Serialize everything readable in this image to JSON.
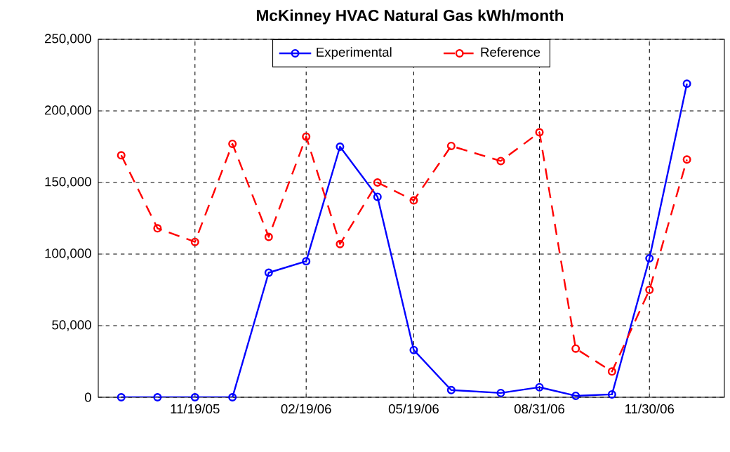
{
  "chart_data": {
    "type": "line",
    "title": "McKinney HVAC Natural Gas kWh/month",
    "x": [
      "2005-09-19",
      "2005-10-19",
      "2005-11-19",
      "2005-12-20",
      "2006-01-19",
      "2006-02-19",
      "2006-03-19",
      "2006-04-19",
      "2006-05-19",
      "2006-06-19",
      "2006-07-30",
      "2006-08-31",
      "2006-09-30",
      "2006-10-30",
      "2006-11-30",
      "2006-12-31"
    ],
    "series": [
      {
        "name": "Experimental",
        "color": "#0000ff",
        "line_style": "solid",
        "values": [
          0,
          0,
          0,
          0,
          87000,
          95000,
          175000,
          140000,
          33000,
          5000,
          3000,
          7000,
          1000,
          2000,
          97000,
          219000
        ]
      },
      {
        "name": "Reference",
        "color": "#ff0000",
        "line_style": "dashed",
        "values": [
          169000,
          118000,
          108500,
          177000,
          112000,
          182000,
          107000,
          150000,
          137500,
          175500,
          165000,
          185000,
          34000,
          18000,
          75000,
          166000
        ]
      }
    ],
    "marker": "circle",
    "xlim": [
      "2005-08-31",
      "2007-01-31"
    ],
    "xticks": [
      {
        "value": "2005-11-19",
        "label": "11/19/05"
      },
      {
        "value": "2006-02-19",
        "label": "02/19/06"
      },
      {
        "value": "2006-05-19",
        "label": "05/19/06"
      },
      {
        "value": "2006-08-31",
        "label": "08/31/06"
      },
      {
        "value": "2006-11-30",
        "label": "11/30/06"
      }
    ],
    "ylim": [
      0,
      250000
    ],
    "yticks": [
      0,
      {
        "value": 50000,
        "label": "50,000"
      },
      {
        "value": 100000,
        "label": "100,000"
      },
      {
        "value": 150000,
        "label": "150,000"
      },
      {
        "value": 200000,
        "label": "200,000"
      },
      {
        "value": 250000,
        "label": "250,000"
      }
    ],
    "grid": true,
    "legend": "top"
  }
}
